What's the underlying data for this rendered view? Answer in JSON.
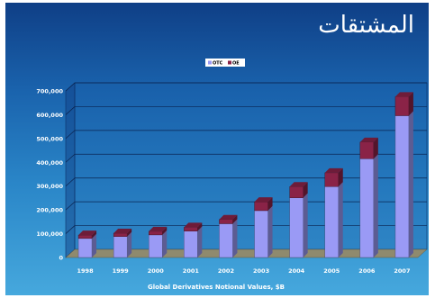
{
  "slide": {
    "title": "المشتقات",
    "background_top": "#0f3f86",
    "background_bottom": "#46a8dd"
  },
  "chart_data": {
    "type": "bar",
    "stacked": true,
    "categories": [
      "1998",
      "1999",
      "2000",
      "2001",
      "2002",
      "2003",
      "2004",
      "2005",
      "2006",
      "2007"
    ],
    "series": [
      {
        "name": "OTC",
        "color": "#9a9af5",
        "values": [
          80000,
          88000,
          95000,
          111000,
          142000,
          197000,
          251000,
          298000,
          415000,
          596000
        ]
      },
      {
        "name": "OE",
        "color": "#8a2347",
        "values": [
          14000,
          14000,
          15000,
          16000,
          18000,
          37000,
          47000,
          58000,
          70000,
          80000
        ]
      }
    ],
    "xlabel": "Global Derivatives Notional Values, $B",
    "ylabel": "",
    "ylim": [
      0,
      700000
    ],
    "yticks": [
      "0",
      "100,000",
      "200,000",
      "300,000",
      "400,000",
      "500,000",
      "600,000",
      "700,000"
    ],
    "grid": true,
    "legend_position": "top-left"
  }
}
